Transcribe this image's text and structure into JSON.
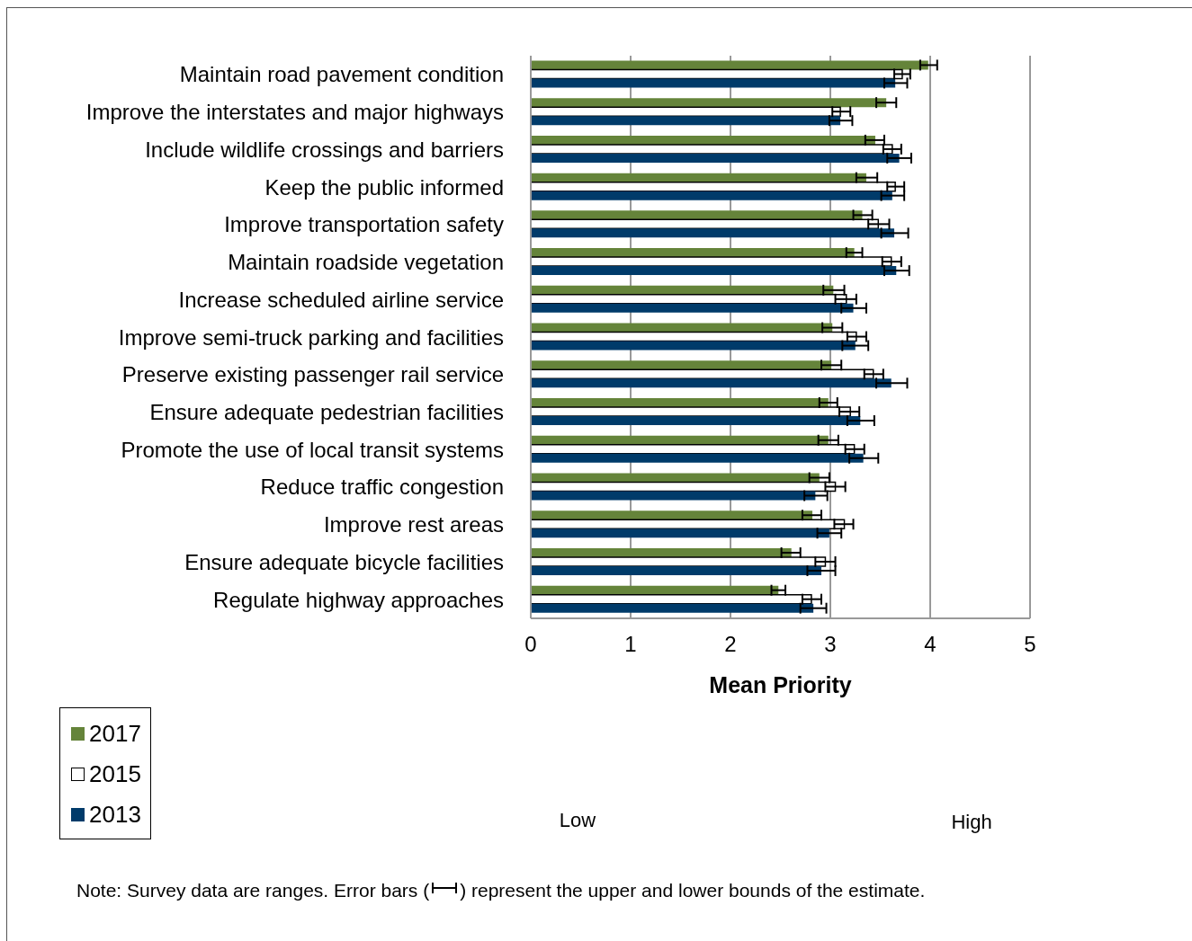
{
  "chart_data": {
    "type": "bar",
    "orientation": "horizontal",
    "categories": [
      "Maintain road pavement condition",
      "Improve the interstates and major highways",
      "Include wildlife crossings and barriers",
      "Keep the public informed",
      "Improve transportation safety",
      "Maintain roadside vegetation",
      "Increase scheduled airline service",
      "Improve semi-truck parking and facilities",
      "Preserve existing passenger rail service",
      "Ensure adequate pedestrian facilities",
      "Promote the use of local transit systems",
      "Reduce traffic congestion",
      "Improve rest areas ",
      "Ensure adequate bicycle facilities",
      "Regulate highway approaches"
    ],
    "series": [
      {
        "name": "2017",
        "color": "#65843a",
        "values": [
          3.98,
          3.56,
          3.45,
          3.36,
          3.32,
          3.24,
          3.03,
          3.02,
          3.01,
          2.98,
          2.98,
          2.89,
          2.82,
          2.61,
          2.48
        ],
        "errors": [
          [
            3.9,
            4.07
          ],
          [
            3.46,
            3.66
          ],
          [
            3.35,
            3.54
          ],
          [
            3.26,
            3.47
          ],
          [
            3.23,
            3.42
          ],
          [
            3.16,
            3.32
          ],
          [
            2.93,
            3.14
          ],
          [
            2.92,
            3.12
          ],
          [
            2.91,
            3.11
          ],
          [
            2.89,
            3.07
          ],
          [
            2.88,
            3.08
          ],
          [
            2.79,
            2.99
          ],
          [
            2.72,
            2.91
          ],
          [
            2.51,
            2.7
          ],
          [
            2.41,
            2.55
          ]
        ]
      },
      {
        "name": "2015",
        "color": "#ffffff",
        "values": [
          3.72,
          3.1,
          3.62,
          3.65,
          3.48,
          3.61,
          3.16,
          3.26,
          3.43,
          3.2,
          3.24,
          3.05,
          3.14,
          2.95,
          2.81
        ],
        "errors": [
          [
            3.64,
            3.8
          ],
          [
            3.02,
            3.2
          ],
          [
            3.53,
            3.71
          ],
          [
            3.57,
            3.74
          ],
          [
            3.38,
            3.59
          ],
          [
            3.52,
            3.71
          ],
          [
            3.05,
            3.26
          ],
          [
            3.17,
            3.36
          ],
          [
            3.34,
            3.53
          ],
          [
            3.09,
            3.29
          ],
          [
            3.15,
            3.34
          ],
          [
            2.95,
            3.15
          ],
          [
            3.04,
            3.23
          ],
          [
            2.85,
            3.05
          ],
          [
            2.72,
            2.91
          ]
        ]
      },
      {
        "name": "2013",
        "color": "#003b6a",
        "values": [
          3.65,
          3.1,
          3.69,
          3.62,
          3.64,
          3.66,
          3.23,
          3.25,
          3.61,
          3.3,
          3.33,
          2.85,
          2.99,
          2.91,
          2.83
        ],
        "errors": [
          [
            3.54,
            3.77
          ],
          [
            2.99,
            3.22
          ],
          [
            3.57,
            3.81
          ],
          [
            3.51,
            3.74
          ],
          [
            3.51,
            3.78
          ],
          [
            3.54,
            3.79
          ],
          [
            3.11,
            3.36
          ],
          [
            3.12,
            3.38
          ],
          [
            3.46,
            3.77
          ],
          [
            3.17,
            3.44
          ],
          [
            3.19,
            3.48
          ],
          [
            2.74,
            2.97
          ],
          [
            2.87,
            3.11
          ],
          [
            2.77,
            3.05
          ],
          [
            2.7,
            2.96
          ]
        ]
      }
    ],
    "xlim": [
      0,
      5
    ],
    "xticks": [
      0,
      1,
      2,
      3,
      4,
      5
    ],
    "xlabel": "Mean Priority",
    "grid": "x",
    "legend": "bottom left",
    "annotations": [
      "Low",
      "High",
      "Note: Survey data are ranges. Error bars (",
      ") represent the upper and lower bounds of the estimate."
    ]
  }
}
